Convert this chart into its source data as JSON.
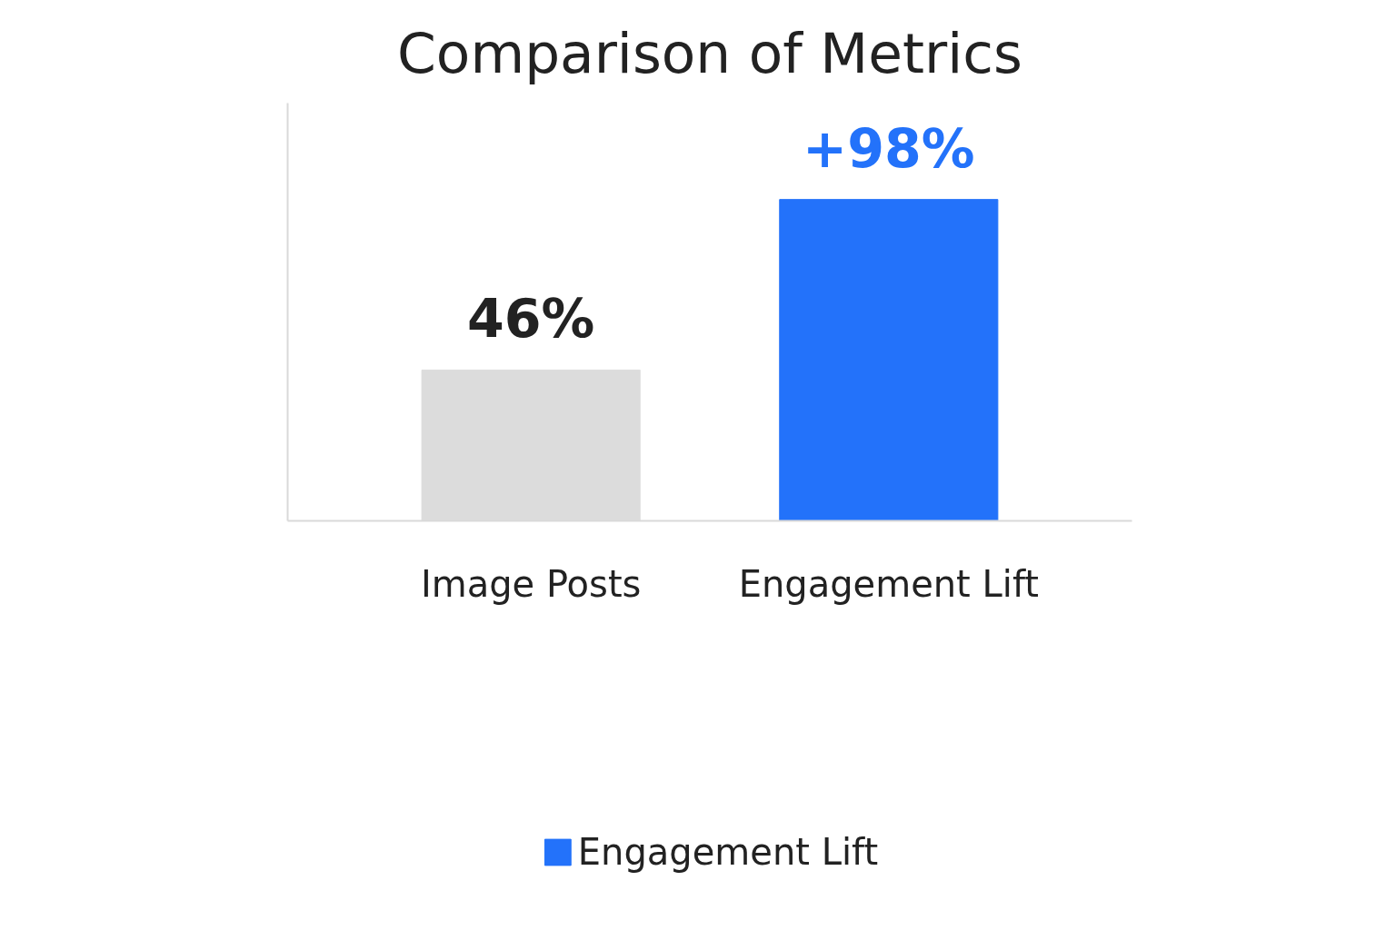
{
  "chart_data": {
    "type": "bar",
    "title": "Comparison of Metrics",
    "categories": [
      "Image Posts",
      "Engagement Lift"
    ],
    "series": [
      {
        "color": "#dcdcdc",
        "values": [
          46,
          null
        ],
        "value_labels": [
          "46%",
          null
        ]
      },
      {
        "name": "Engagement Lift",
        "color": "#2372fa",
        "values": [
          null,
          98
        ],
        "value_labels": [
          null,
          "+98%"
        ]
      }
    ],
    "grid": false,
    "legend": "bottom"
  }
}
